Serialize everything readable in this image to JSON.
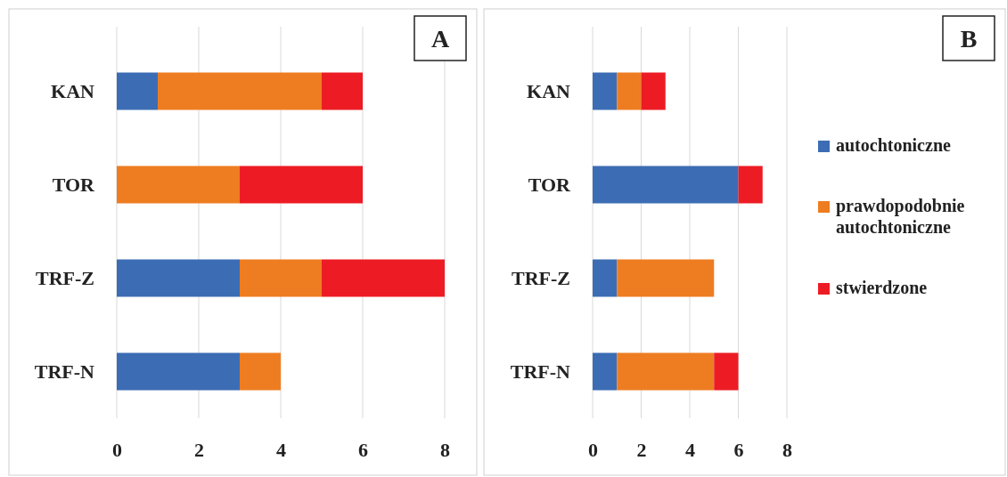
{
  "chart_data": [
    {
      "type": "bar",
      "orientation": "horizontal",
      "stacked": true,
      "categories": [
        "KAN",
        "TOR",
        "TRF-Z",
        "TRF-N"
      ],
      "series": [
        {
          "color": "#3c6db4",
          "values": [
            1,
            0,
            3,
            3
          ]
        },
        {
          "color": "#ee7d22",
          "values": [
            4,
            3,
            2,
            1
          ]
        },
        {
          "color": "#ed1c24",
          "values": [
            1,
            3,
            3,
            0
          ]
        }
      ],
      "xlim": [
        0,
        8
      ],
      "xticks": [
        0,
        2,
        4,
        6,
        8
      ],
      "grid": "x",
      "legend": false,
      "annotations": [
        "A"
      ]
    },
    {
      "type": "bar",
      "orientation": "horizontal",
      "stacked": true,
      "categories": [
        "KAN",
        "TOR",
        "TRF-Z",
        "TRF-N"
      ],
      "series": [
        {
          "name": "autochtoniczne",
          "color": "#3c6db4",
          "values": [
            1,
            6,
            1,
            1
          ]
        },
        {
          "name": "prawdopodobnie autochtoniczne",
          "color": "#ee7d22",
          "values": [
            1,
            0,
            4,
            4
          ]
        },
        {
          "name": "stwierdzone",
          "color": "#ed1c24",
          "values": [
            1,
            1,
            0,
            1
          ]
        }
      ],
      "xlim": [
        0,
        8
      ],
      "xticks": [
        0,
        2,
        4,
        6,
        8
      ],
      "grid": "x",
      "legend": "right",
      "annotations": [
        "B"
      ]
    }
  ]
}
